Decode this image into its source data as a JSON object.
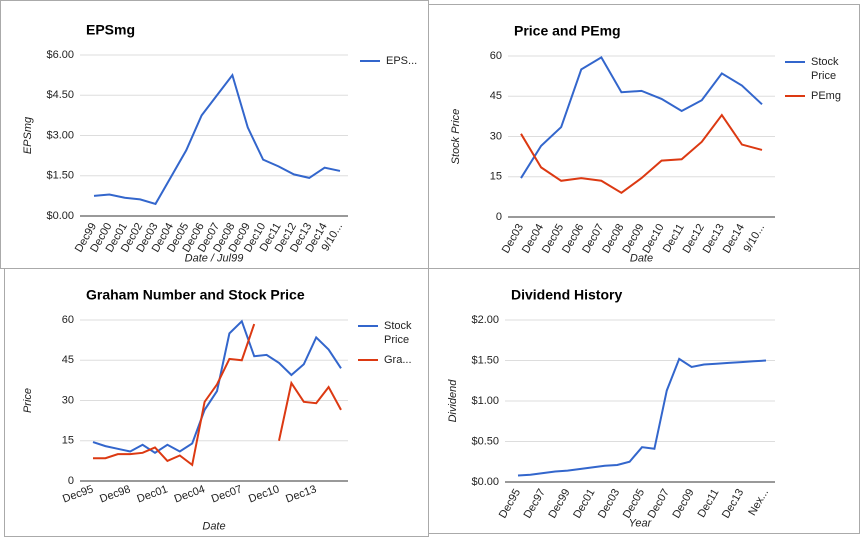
{
  "chart_data": [
    {
      "type": "line",
      "title": "EPSmg",
      "y_label": "EPSmg",
      "x_label": "Date / Jul99",
      "categories": [
        "Dec99",
        "Dec00",
        "Dec01",
        "Dec02",
        "Dec03",
        "Dec04",
        "Dec05",
        "Dec06",
        "Dec07",
        "Dec08",
        "Dec09",
        "Dec10",
        "Dec11",
        "Dec12",
        "Dec13",
        "Dec14",
        "9/10..."
      ],
      "series": [
        {
          "name": "EPS...",
          "color": "#3366cc",
          "values": [
            0.75,
            0.8,
            0.68,
            0.62,
            0.45,
            1.45,
            2.45,
            3.75,
            4.5,
            5.25,
            3.3,
            2.1,
            1.85,
            1.55,
            1.42,
            1.8,
            1.68
          ]
        }
      ],
      "ylim": [
        0,
        6
      ],
      "yticks": [
        {
          "value": 0,
          "label": "$0.00"
        },
        {
          "value": 1.5,
          "label": "$1.50"
        },
        {
          "value": 3,
          "label": "$3.00"
        },
        {
          "value": 4.5,
          "label": "$4.50"
        },
        {
          "value": 6,
          "label": "$6.00"
        }
      ],
      "grid": true,
      "legend": "right"
    },
    {
      "type": "line",
      "title": "Price and PEmg",
      "y_label": "Stock Price",
      "x_label": "Date",
      "categories": [
        "Dec03",
        "Dec04",
        "Dec05",
        "Dec06",
        "Dec07",
        "Dec08",
        "Dec09",
        "Dec10",
        "Dec11",
        "Dec12",
        "Dec13",
        "Dec14",
        "9/10..."
      ],
      "series": [
        {
          "name": "Stock Price",
          "color": "#3366cc",
          "values": [
            14.5,
            26.5,
            33.5,
            55,
            59.5,
            46.5,
            47,
            44,
            39.5,
            43.5,
            53.5,
            49,
            42
          ]
        },
        {
          "name": "PEmg",
          "color": "#dc3912",
          "values": [
            31,
            18.5,
            13.5,
            14.5,
            13.5,
            9,
            14.5,
            21,
            21.5,
            28,
            38,
            27,
            25
          ]
        }
      ],
      "ylim": [
        0,
        60
      ],
      "yticks": [
        0,
        15,
        30,
        45,
        60
      ],
      "grid": true,
      "legend": "right"
    },
    {
      "type": "line",
      "title": "Graham Number and Stock Price",
      "y_label": "Price",
      "x_label": "Date",
      "categories": [
        "Dec95",
        null,
        null,
        "Dec98",
        null,
        null,
        "Dec01",
        null,
        null,
        "Dec04",
        null,
        null,
        "Dec07",
        null,
        null,
        "Dec10",
        null,
        null,
        "Dec13",
        null,
        null
      ],
      "series": [
        {
          "name": "Stock Price",
          "color": "#3366cc",
          "values": [
            14.5,
            13,
            12,
            11,
            13.5,
            10.5,
            13.5,
            11,
            14,
            26.5,
            33.5,
            55,
            59.5,
            46.5,
            47,
            44,
            39.5,
            43.5,
            53.5,
            49,
            42
          ]
        },
        {
          "name": "Gra...",
          "color": "#dc3912",
          "values": [
            8.5,
            8.5,
            10,
            10,
            10.5,
            12.5,
            7.5,
            9.5,
            6,
            29.5,
            36,
            45.5,
            45,
            58.5,
            null,
            15,
            36.5,
            29.5,
            29,
            35,
            26.5
          ]
        }
      ],
      "ylim": [
        0,
        60
      ],
      "yticks": [
        0,
        15,
        30,
        45,
        60
      ],
      "grid": true,
      "legend": "right"
    },
    {
      "type": "line",
      "title": "Dividend History",
      "y_label": "Dividend",
      "x_label": "Year",
      "categories": [
        "Dec95",
        null,
        "Dec97",
        null,
        "Dec99",
        null,
        "Dec01",
        null,
        "Dec03",
        null,
        "Dec05",
        null,
        "Dec07",
        null,
        "Dec09",
        null,
        "Dec11",
        null,
        "Dec13",
        null,
        "Nex..."
      ],
      "series": [
        {
          "color": "#3366cc",
          "values": [
            0.08,
            0.09,
            0.11,
            0.13,
            0.14,
            0.16,
            0.18,
            0.2,
            0.21,
            0.25,
            0.43,
            0.41,
            1.13,
            1.52,
            1.42,
            1.45,
            1.46,
            1.47,
            1.48,
            1.49,
            1.5
          ]
        }
      ],
      "ylim": [
        0,
        2
      ],
      "yticks": [
        {
          "value": 0,
          "label": "$0.00"
        },
        {
          "value": 0.5,
          "label": "$0.50"
        },
        {
          "value": 1,
          "label": "$1.00"
        },
        {
          "value": 1.5,
          "label": "$1.50"
        },
        {
          "value": 2,
          "label": "$2.00"
        }
      ],
      "grid": true
    }
  ]
}
